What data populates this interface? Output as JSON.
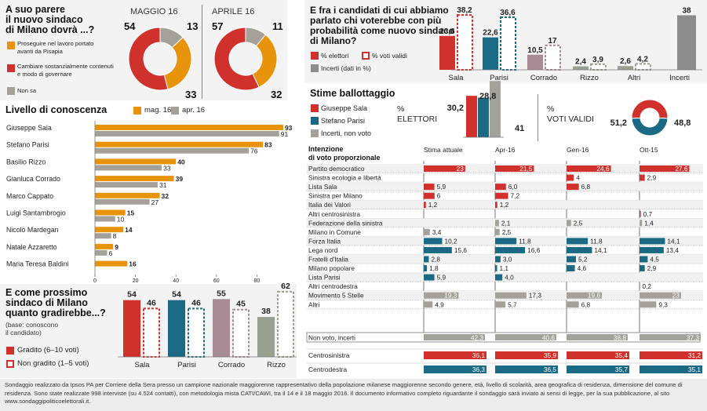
{
  "colors": {
    "red": "#d0312d",
    "orange": "#e8930c",
    "gray": "#a3a199",
    "teal": "#1b6a85",
    "mauve": "#a98b96",
    "olive": "#99a090",
    "darkgray": "#8c8c8c"
  },
  "q1": {
    "title_line1": "A suo parere",
    "title_line2": "il nuovo sindaco",
    "title_line3": "di Milano dovrà ...?",
    "legend": [
      "Proseguire nel lavoro portato avanti da Pisapia",
      "Cambiare sostanzialmente contenuti e modo di governare",
      "Non sa"
    ],
    "may": {
      "label": "MAGGIO 16",
      "values": [
        54,
        33,
        13
      ]
    },
    "apr": {
      "label": "APRILE 16",
      "values": [
        57,
        32,
        11
      ]
    }
  },
  "knowledge": {
    "title": "Livello di conoscenza",
    "legend": [
      "mag. 16",
      "apr. 16"
    ],
    "candidates": [
      "Giuseppe Sala",
      "Stefano Parisi",
      "Basilio Rizzo",
      "Gianluca Corrado",
      "Marco Cappato",
      "Luigi Santambrogio",
      "Nicolò Mardegan",
      "Natale Azzaretto",
      "Maria Teresa Baldini"
    ],
    "may": [
      93,
      83,
      40,
      39,
      32,
      15,
      14,
      9,
      16
    ],
    "apr": [
      91,
      76,
      33,
      31,
      27,
      10,
      8,
      6,
      null
    ],
    "ticks": [
      "0",
      "20",
      "40",
      "60",
      "80"
    ]
  },
  "mayor": {
    "title_line1": "E come prossimo",
    "title_line2": "sindaco di Milano",
    "title_line3": "quanto gradirebbe...?",
    "note_line1": "(base: conoscono",
    "note_line2": "il candidato)",
    "legend": [
      "Gradito (6–10 voti)",
      "Non gradito (1–5 voti)"
    ],
    "candidates": [
      "Sala",
      "Parisi",
      "Corrado",
      "Rizzo"
    ],
    "gradito": [
      54,
      54,
      55,
      38
    ],
    "non_gradito": [
      46,
      46,
      45,
      62
    ]
  },
  "probable": {
    "title_line1": "E fra i candidati di cui abbiamo",
    "title_line2": "parlato chi voterebbe con più",
    "title_line3": "probabilità come nuovo sindaco",
    "title_line4": "di Milano?",
    "legend": [
      "% elettori",
      "% voti validi",
      "Incerti (dati in %)"
    ],
    "categories": [
      "Sala",
      "Parisi",
      "Corrado",
      "Rizzo",
      "Altri",
      "Incerti"
    ],
    "elettori": [
      23.6,
      22.6,
      10.5,
      2.4,
      2.6,
      38
    ],
    "validi": [
      38.2,
      36.6,
      17,
      3.9,
      4.2,
      null
    ],
    "labels_el": [
      "23,6",
      "22,6",
      "10,5",
      "2,4",
      "2,6",
      "38"
    ],
    "labels_va": [
      "38,2",
      "36,6",
      "17",
      "3,9",
      "4,2",
      ""
    ]
  },
  "runoff": {
    "title": "Stime ballottaggio",
    "legend": [
      "Giuseppe Sala",
      "Stefano Parisi",
      "Incerti, non voto"
    ],
    "pct": "%",
    "elettori_label": "ELETTORI",
    "voti_validi_label": "VOTI VALIDI",
    "elettori": [
      30.2,
      28.8,
      41
    ],
    "elettori_labels": [
      "30,2",
      "28,8",
      "41"
    ],
    "validi": [
      51.2,
      48.8
    ],
    "validi_labels": [
      "51,2",
      "48,8"
    ]
  },
  "intent": {
    "title_line1": "Intenzione",
    "title_line2": "di voto proporzionale",
    "columns": [
      "Stima attuale",
      "Apr-16",
      "Gen-16",
      "Ott-15"
    ],
    "rows": [
      {
        "party": "Partito democratico",
        "vals": [
          23,
          21.5,
          24.6,
          27.6
        ],
        "labels": [
          "23",
          "21,5",
          "24,6",
          "27,6"
        ],
        "col": "red"
      },
      {
        "party": "Sinistra ecologia e libertà",
        "vals": [
          null,
          null,
          4,
          2.9
        ],
        "labels": [
          "",
          "",
          "4",
          "2,9"
        ],
        "col": "red"
      },
      {
        "party": "Lista Sala",
        "vals": [
          5.9,
          6.0,
          6.8,
          null
        ],
        "labels": [
          "5,9",
          "6,0",
          "6,8",
          ""
        ],
        "col": "red"
      },
      {
        "party": "Sinistra per Milano",
        "vals": [
          6,
          7.2,
          null,
          null
        ],
        "labels": [
          "6",
          "7,2",
          "",
          ""
        ],
        "col": "red"
      },
      {
        "party": "Italia dei Valori",
        "vals": [
          1.2,
          1.2,
          null,
          null
        ],
        "labels": [
          "1,2",
          "1,2",
          "",
          ""
        ],
        "col": "red"
      },
      {
        "party": "Altri centrosinistra",
        "vals": [
          null,
          null,
          null,
          0.7
        ],
        "labels": [
          "",
          "",
          "",
          "0,7"
        ],
        "col": "red"
      },
      {
        "party": "Federazione della sinistra",
        "vals": [
          null,
          2.1,
          2.5,
          1.4
        ],
        "labels": [
          "",
          "2,1",
          "2,5",
          "1,4"
        ],
        "col": "gray"
      },
      {
        "party": "Milano in Comune",
        "vals": [
          3.4,
          2.5,
          null,
          null
        ],
        "labels": [
          "3,4",
          "2,5",
          "",
          ""
        ],
        "col": "gray"
      },
      {
        "party": "Forza Italia",
        "vals": [
          10.2,
          11.8,
          11.8,
          14.1
        ],
        "labels": [
          "10,2",
          "11,8",
          "11,8",
          "14,1"
        ],
        "col": "teal"
      },
      {
        "party": "Lega nord",
        "vals": [
          15.6,
          16.6,
          14.1,
          13.4
        ],
        "labels": [
          "15,6",
          "16,6",
          "14,1",
          "13,4"
        ],
        "col": "teal"
      },
      {
        "party": "Fratelli d'Italia",
        "vals": [
          2.8,
          3.0,
          5.2,
          4.5
        ],
        "labels": [
          "2,8",
          "3,0",
          "5,2",
          "4,5"
        ],
        "col": "teal"
      },
      {
        "party": "Milano popolare",
        "vals": [
          1.8,
          1.1,
          4.6,
          2.9
        ],
        "labels": [
          "1,8",
          "1,1",
          "4,6",
          "2,9"
        ],
        "col": "teal"
      },
      {
        "party": "Lista Parisi",
        "vals": [
          5.9,
          4.0,
          null,
          null
        ],
        "labels": [
          "5,9",
          "4,0",
          "",
          ""
        ],
        "col": "teal"
      },
      {
        "party": "Altri centrodestra",
        "vals": [
          null,
          null,
          null,
          0.2
        ],
        "labels": [
          "",
          "",
          "",
          "0,2"
        ],
        "col": "teal"
      },
      {
        "party": "Movimento 5 Stelle",
        "vals": [
          19.3,
          17.3,
          19.6,
          23
        ],
        "labels": [
          "19,3",
          "17,3",
          "19,6",
          "23"
        ],
        "col": "gray"
      },
      {
        "party": "Altri",
        "vals": [
          4.9,
          5.7,
          6.8,
          9.3
        ],
        "labels": [
          "4,9",
          "5,7",
          "6,8",
          "9,3"
        ],
        "col": "gray"
      }
    ],
    "nonvoto": {
      "label": "Non voto, incerti",
      "vals": [
        42.3,
        40.6,
        38.8,
        37.3
      ],
      "labels": [
        "42,3",
        "40,6",
        "38,8",
        "37,3"
      ]
    },
    "centrosinistra": {
      "label": "Centrosinistra",
      "vals": [
        36.1,
        35.9,
        35.4,
        31.2
      ],
      "labels": [
        "36,1",
        "35,9",
        "35,4",
        "31,2"
      ]
    },
    "centrodestra": {
      "label": "Centrodestra",
      "vals": [
        36.3,
        36.5,
        35.7,
        35.1
      ],
      "labels": [
        "36,3",
        "36,5",
        "35,7",
        "35,1"
      ]
    }
  },
  "footer": "Sondaggio realizzato da Ipsos PA per Corriere della Sera presso un campione nazionale maggiorenne rappresentativo della popolazione milanese maggiorenne secondo genere, età, livello di scolarità, area geografica di residenza, dimensione del comune di residenza. Sono state realizzate 998 interviste (su 4.524 contatti), con metodologia mista CATI/CAWI, tra il 14 e il 18 maggio 2016. Il documento informativo completo riguardante il sondaggio sarà inviato ai sensi di legge, per la sua pubblicazione, al sito www.sondaggipoliticoelettorali.it."
}
